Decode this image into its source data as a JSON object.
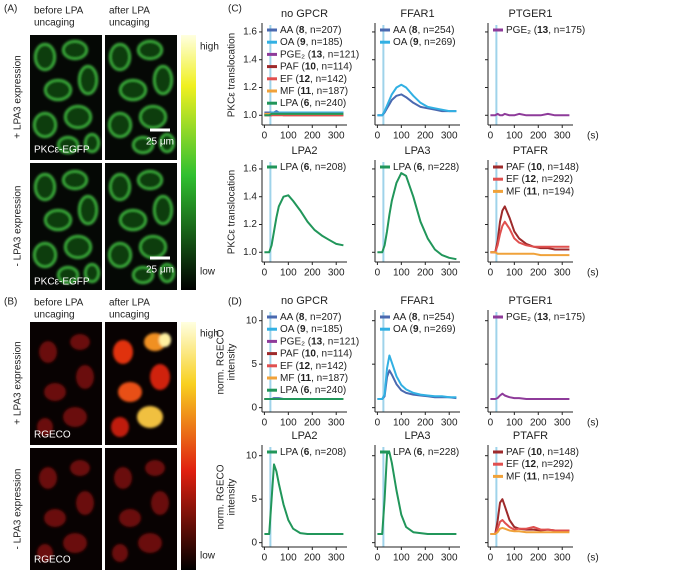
{
  "panel_labels": [
    "(A)",
    "(B)",
    "(C)",
    "(D)"
  ],
  "microscopy": [
    {
      "columns": [
        [
          "before LPA",
          "uncaging"
        ],
        [
          "after LPA",
          "uncaging"
        ]
      ],
      "rows": [
        "+ LPA3 expression",
        "- LPA3 expression"
      ],
      "stain": "PKCε-EGFP",
      "scale_bar": "25 μm",
      "colorbar": [
        "high",
        "low"
      ]
    },
    {
      "columns": [
        [
          "before LPA",
          "uncaging"
        ],
        [
          "after LPA",
          "uncaging"
        ]
      ],
      "rows": [
        "+ LPA3 expression",
        "- LPA3 expression"
      ],
      "stain": "RGECO",
      "colorbar": [
        "high",
        "low"
      ]
    }
  ],
  "chart_data": [
    {
      "type": "line",
      "title": "no GPCR",
      "ylabel": [
        "PKCε translocation"
      ],
      "xlim": [
        -10,
        345
      ],
      "xticks": [
        0,
        100,
        200,
        300
      ],
      "ylim": [
        0.93,
        1.65
      ],
      "yticks": [
        {
          "value": 1,
          "label": "1.0"
        },
        1.2,
        1.4,
        1.6
      ],
      "vline_x": 25,
      "x": [
        0,
        20,
        30,
        40,
        50,
        60,
        80,
        100,
        120,
        150,
        180,
        210,
        240,
        270,
        300,
        330
      ],
      "series": [
        {
          "name": "AA (8, n=207)",
          "color": "#4a69b0",
          "values": [
            1.02,
            1.02,
            1.02,
            1.02,
            1.03,
            1.02,
            1.02,
            1.02,
            1.02,
            1.02,
            1.02,
            1.02,
            1.02,
            1.02,
            1.02,
            1.02
          ]
        },
        {
          "name": "OA (9, n=185)",
          "color": "#31b0e3",
          "values": [
            1.01,
            1.01,
            1.02,
            1.02,
            1.02,
            1.02,
            1.02,
            1.02,
            1.02,
            1.02,
            1.02,
            1.02,
            1.02,
            1.02,
            1.02,
            1.02
          ]
        },
        {
          "name": "PGE₂ (13, n=121)",
          "color": "#8e3b9a",
          "values": [
            1.01,
            1.01,
            1.01,
            1.01,
            1.01,
            1.01,
            1.01,
            1.01,
            1.01,
            1.01,
            1.01,
            1.01,
            1.01,
            1.01,
            1.01,
            1.01
          ]
        },
        {
          "name": "PAF (10, n=114)",
          "color": "#9e2a2b",
          "values": [
            1.0,
            1.0,
            1.0,
            1.01,
            1.01,
            1.01,
            1.0,
            1.0,
            1.0,
            1.0,
            1.0,
            1.0,
            1.0,
            1.0,
            1.0,
            1.0
          ]
        },
        {
          "name": "EF (12, n=142)",
          "color": "#e0504f",
          "values": [
            1.0,
            1.0,
            1.0,
            1.0,
            1.0,
            1.0,
            1.0,
            1.0,
            1.0,
            1.0,
            1.0,
            1.0,
            1.0,
            1.0,
            1.0,
            1.0
          ]
        },
        {
          "name": "MF (11, n=187)",
          "color": "#f0a23a",
          "values": [
            1.01,
            1.01,
            1.01,
            1.01,
            1.01,
            1.01,
            1.01,
            1.01,
            1.01,
            1.01,
            1.01,
            1.01,
            1.01,
            1.01,
            1.01,
            1.01
          ]
        },
        {
          "name": "LPA (6, n=240)",
          "color": "#21965a",
          "values": [
            1.0,
            1.0,
            1.01,
            1.01,
            1.01,
            1.01,
            1.01,
            1.01,
            1.01,
            1.01,
            1.01,
            1.01,
            1.01,
            1.01,
            1.01,
            1.01
          ]
        }
      ]
    },
    {
      "type": "line",
      "title": "FFAR1",
      "xlim": [
        -10,
        345
      ],
      "xticks": [
        0,
        100,
        200,
        300
      ],
      "ylim": [
        0.93,
        1.65
      ],
      "yticks": [
        {
          "value": 1,
          "label": "1.0"
        },
        1.2,
        1.4,
        1.6
      ],
      "vline_x": 25,
      "x": [
        0,
        20,
        30,
        40,
        50,
        60,
        80,
        100,
        120,
        150,
        180,
        210,
        240,
        270,
        300,
        330
      ],
      "series": [
        {
          "name": "AA (8, n=254)",
          "color": "#4a69b0",
          "values": [
            1.0,
            1.0,
            1.02,
            1.05,
            1.08,
            1.11,
            1.14,
            1.15,
            1.13,
            1.09,
            1.06,
            1.05,
            1.04,
            1.03,
            1.03,
            1.03
          ]
        },
        {
          "name": "OA (9, n=269)",
          "color": "#31b0e3",
          "values": [
            1.0,
            1.0,
            1.03,
            1.07,
            1.11,
            1.15,
            1.2,
            1.22,
            1.2,
            1.14,
            1.09,
            1.06,
            1.05,
            1.04,
            1.03,
            1.03
          ]
        }
      ]
    },
    {
      "type": "line",
      "title": "PTGER1",
      "xlabel": "(s)",
      "xlim": [
        -10,
        345
      ],
      "xticks": [
        0,
        100,
        200,
        300
      ],
      "ylim": [
        0.93,
        1.65
      ],
      "yticks": [
        {
          "value": 1,
          "label": "1.0"
        },
        1.2,
        1.4,
        1.6
      ],
      "vline_x": 25,
      "x": [
        0,
        20,
        30,
        40,
        50,
        60,
        80,
        100,
        120,
        150,
        180,
        210,
        240,
        270,
        300,
        330
      ],
      "series": [
        {
          "name": "PGE₂ (13, n=175)",
          "color": "#8e3b9a",
          "values": [
            1.0,
            1.0,
            1.01,
            1.0,
            1.0,
            1.01,
            1.0,
            1.0,
            1.01,
            1.0,
            1.0,
            1.0,
            1.01,
            1.0,
            1.0,
            1.0
          ]
        }
      ]
    },
    {
      "type": "line",
      "title": "LPA2",
      "ylabel": [
        "PKCε translocation"
      ],
      "xlim": [
        -10,
        345
      ],
      "xticks": [
        0,
        100,
        200,
        300
      ],
      "ylim": [
        0.93,
        1.65
      ],
      "yticks": [
        {
          "value": 1,
          "label": "1.0"
        },
        1.2,
        1.4,
        1.6
      ],
      "vline_x": 25,
      "x": [
        0,
        20,
        30,
        40,
        50,
        60,
        80,
        100,
        120,
        150,
        180,
        210,
        240,
        270,
        300,
        330
      ],
      "series": [
        {
          "name": "LPA (6, n=208)",
          "color": "#21965a",
          "values": [
            1.0,
            1.0,
            1.05,
            1.15,
            1.25,
            1.33,
            1.4,
            1.41,
            1.37,
            1.3,
            1.22,
            1.16,
            1.12,
            1.09,
            1.06,
            1.05
          ]
        }
      ]
    },
    {
      "type": "line",
      "title": "LPA3",
      "xlim": [
        -10,
        345
      ],
      "xticks": [
        0,
        100,
        200,
        300
      ],
      "ylim": [
        0.93,
        1.65
      ],
      "yticks": [
        {
          "value": 1,
          "label": "1.0"
        },
        1.2,
        1.4,
        1.6
      ],
      "vline_x": 25,
      "x": [
        0,
        20,
        30,
        40,
        50,
        60,
        80,
        100,
        120,
        150,
        180,
        210,
        240,
        270,
        300,
        330
      ],
      "series": [
        {
          "name": "LPA (6, n=228)",
          "color": "#21965a",
          "values": [
            1.0,
            1.0,
            1.05,
            1.15,
            1.27,
            1.37,
            1.5,
            1.57,
            1.55,
            1.4,
            1.22,
            1.1,
            1.02,
            0.98,
            0.96,
            0.95
          ]
        }
      ]
    },
    {
      "type": "line",
      "title": "PTAFR",
      "xlabel": "(s)",
      "xlim": [
        -10,
        345
      ],
      "xticks": [
        0,
        100,
        200,
        300
      ],
      "ylim": [
        0.93,
        1.65
      ],
      "yticks": [
        {
          "value": 1,
          "label": "1.0"
        },
        1.2,
        1.4,
        1.6
      ],
      "vline_x": 25,
      "x": [
        0,
        20,
        30,
        40,
        50,
        60,
        80,
        100,
        120,
        150,
        180,
        210,
        240,
        270,
        300,
        330
      ],
      "series": [
        {
          "name": "PAF (10, n=148)",
          "color": "#9e2a2b",
          "values": [
            1.0,
            1.0,
            1.08,
            1.22,
            1.3,
            1.33,
            1.25,
            1.15,
            1.1,
            1.06,
            1.04,
            1.03,
            1.03,
            1.02,
            1.02,
            1.02
          ]
        },
        {
          "name": "EF (12, n=292)",
          "color": "#e0504f",
          "values": [
            1.0,
            1.0,
            1.05,
            1.13,
            1.19,
            1.22,
            1.17,
            1.1,
            1.07,
            1.05,
            1.04,
            1.04,
            1.04,
            1.04,
            1.04,
            1.04
          ]
        },
        {
          "name": "MF (11, n=194)",
          "color": "#f0a23a",
          "values": [
            1.0,
            1.0,
            0.99,
            0.99,
            0.99,
            0.99,
            0.99,
            0.99,
            0.99,
            0.99,
            0.99,
            0.98,
            0.98,
            0.98,
            0.98,
            0.98
          ]
        }
      ]
    },
    {
      "type": "line",
      "title": "no GPCR",
      "ylabel": [
        "norm. RGECO",
        "intensity"
      ],
      "xlim": [
        -10,
        345
      ],
      "xticks": [
        0,
        100,
        200,
        300
      ],
      "ylim": [
        -0.5,
        11
      ],
      "yticks": [
        0,
        5,
        10
      ],
      "vline_x": 25,
      "x": [
        0,
        20,
        30,
        40,
        50,
        60,
        80,
        100,
        120,
        150,
        180,
        210,
        240,
        270,
        300,
        330
      ],
      "series": [
        {
          "name": "AA (8, n=207)",
          "color": "#4a69b0",
          "values": [
            1,
            1,
            1,
            1.1,
            1.1,
            1.1,
            1,
            1,
            1,
            1,
            1,
            1,
            1,
            1,
            1,
            1
          ]
        },
        {
          "name": "OA (9, n=185)",
          "color": "#31b0e3",
          "values": [
            1,
            1,
            1,
            1,
            1,
            1,
            1,
            1,
            1,
            1,
            1,
            1,
            1,
            1,
            1,
            1
          ]
        },
        {
          "name": "PGE₂ (13, n=121)",
          "color": "#8e3b9a",
          "values": [
            1,
            1,
            1,
            1,
            1,
            1,
            1,
            1,
            1,
            1,
            1,
            1,
            1,
            1,
            1,
            1
          ]
        },
        {
          "name": "PAF (10, n=114)",
          "color": "#9e2a2b",
          "values": [
            1,
            1,
            1,
            1,
            1,
            1,
            1,
            1,
            1,
            1,
            1,
            1,
            1,
            1,
            1,
            1
          ]
        },
        {
          "name": "EF (12, n=142)",
          "color": "#e0504f",
          "values": [
            1,
            1,
            1,
            1,
            1,
            1,
            1,
            1,
            1,
            1,
            1,
            1,
            1,
            1,
            1,
            1
          ]
        },
        {
          "name": "MF (11, n=187)",
          "color": "#f0a23a",
          "values": [
            1,
            1,
            1,
            1,
            1,
            1,
            1,
            1,
            1,
            1,
            1,
            1,
            1,
            1,
            1,
            1
          ]
        },
        {
          "name": "LPA (6, n=240)",
          "color": "#21965a",
          "values": [
            1,
            1,
            1,
            1,
            1,
            1,
            1,
            1,
            1,
            1,
            1,
            1,
            1,
            1,
            1,
            1
          ]
        }
      ]
    },
    {
      "type": "line",
      "title": "FFAR1",
      "xlim": [
        -10,
        345
      ],
      "xticks": [
        0,
        100,
        200,
        300
      ],
      "ylim": [
        -0.5,
        11
      ],
      "yticks": [
        0,
        5,
        10
      ],
      "vline_x": 25,
      "x": [
        0,
        20,
        30,
        40,
        50,
        60,
        80,
        100,
        120,
        150,
        180,
        210,
        240,
        270,
        300,
        330
      ],
      "series": [
        {
          "name": "AA (8, n=254)",
          "color": "#4a69b0",
          "values": [
            1,
            1,
            1.3,
            3.5,
            4.3,
            3.8,
            2.7,
            2,
            1.7,
            1.5,
            1.4,
            1.3,
            1.2,
            1.2,
            1.2,
            1.1
          ]
        },
        {
          "name": "OA (9, n=269)",
          "color": "#31b0e3",
          "values": [
            1,
            1,
            1.5,
            4.5,
            6,
            5.2,
            3.6,
            2.6,
            2.1,
            1.7,
            1.5,
            1.4,
            1.3,
            1.3,
            1.2,
            1.2
          ]
        }
      ]
    },
    {
      "type": "line",
      "title": "PTGER1",
      "xlabel": "(s)",
      "xlim": [
        -10,
        345
      ],
      "xticks": [
        0,
        100,
        200,
        300
      ],
      "ylim": [
        -0.5,
        11
      ],
      "yticks": [
        0,
        5,
        10
      ],
      "vline_x": 25,
      "x": [
        0,
        20,
        30,
        40,
        50,
        60,
        80,
        100,
        120,
        150,
        180,
        210,
        240,
        270,
        300,
        330
      ],
      "series": [
        {
          "name": "PGE₂ (13, n=175)",
          "color": "#8e3b9a",
          "values": [
            1,
            1,
            1.1,
            1.4,
            1.6,
            1.4,
            1.2,
            1.1,
            1.1,
            1,
            1,
            1,
            1,
            1,
            1,
            1
          ]
        }
      ]
    },
    {
      "type": "line",
      "title": "LPA2",
      "ylabel": [
        "norm. RGECO",
        "intensity"
      ],
      "xlim": [
        -10,
        345
      ],
      "xticks": [
        0,
        100,
        200,
        300
      ],
      "ylim": [
        -0.5,
        11
      ],
      "yticks": [
        0,
        5,
        10
      ],
      "vline_x": 25,
      "x": [
        0,
        20,
        30,
        40,
        50,
        60,
        80,
        100,
        120,
        150,
        180,
        210,
        240,
        270,
        300,
        330
      ],
      "series": [
        {
          "name": "LPA (6, n=208)",
          "color": "#21965a",
          "values": [
            1,
            1,
            5,
            9,
            8.2,
            6.8,
            4.4,
            2.6,
            1.6,
            1.1,
            1,
            1,
            1,
            1,
            1,
            1
          ]
        }
      ]
    },
    {
      "type": "line",
      "title": "LPA3",
      "xlim": [
        -10,
        345
      ],
      "xticks": [
        0,
        100,
        200,
        300
      ],
      "ylim": [
        -0.5,
        11
      ],
      "yticks": [
        0,
        5,
        10
      ],
      "vline_x": 25,
      "x": [
        0,
        20,
        30,
        40,
        50,
        60,
        80,
        100,
        120,
        150,
        180,
        210,
        240,
        270,
        300,
        330
      ],
      "series": [
        {
          "name": "LPA (6, n=228)",
          "color": "#21965a",
          "values": [
            1,
            1,
            5,
            10.2,
            10.4,
            9.2,
            6,
            3.2,
            1.8,
            1.2,
            1.1,
            1,
            1,
            1,
            1,
            1
          ]
        }
      ]
    },
    {
      "type": "line",
      "title": "PTAFR",
      "xlabel": "(s)",
      "xlim": [
        -10,
        345
      ],
      "xticks": [
        0,
        100,
        200,
        300
      ],
      "ylim": [
        -0.5,
        11
      ],
      "yticks": [
        0,
        5,
        10
      ],
      "vline_x": 25,
      "x": [
        0,
        20,
        30,
        40,
        50,
        60,
        80,
        100,
        120,
        150,
        180,
        210,
        240,
        270,
        300,
        330
      ],
      "series": [
        {
          "name": "PAF (10, n=148)",
          "color": "#9e2a2b",
          "values": [
            1,
            1,
            2.5,
            4.6,
            5,
            4.2,
            2.6,
            1.8,
            1.6,
            1.5,
            1.5,
            1.4,
            1.5,
            1.4,
            1.4,
            1.4
          ]
        },
        {
          "name": "EF (12, n=292)",
          "color": "#e0504f",
          "values": [
            1,
            1,
            1.6,
            2.4,
            2.6,
            2.3,
            1.8,
            1.5,
            1.6,
            1.6,
            1.8,
            1.5,
            1.5,
            1.4,
            1.4,
            1.4
          ]
        },
        {
          "name": "MF (11, n=194)",
          "color": "#f0a23a",
          "values": [
            1,
            1,
            1.2,
            1.6,
            1.7,
            1.6,
            1.4,
            1.3,
            1.3,
            1.2,
            1.2,
            1.2,
            1.2,
            1.2,
            1.2,
            1.2
          ]
        }
      ]
    }
  ]
}
